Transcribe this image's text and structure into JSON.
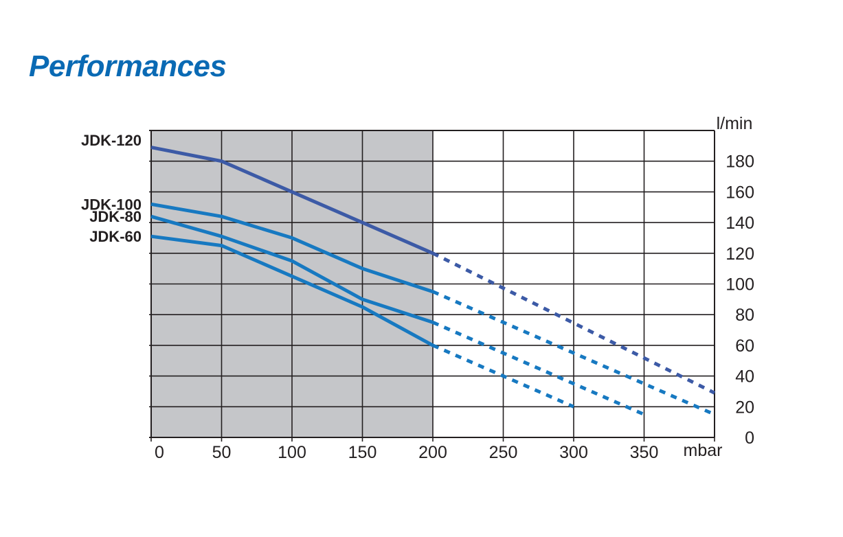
{
  "page": {
    "title": "Performances"
  },
  "colors": {
    "title": "#0a6ab4",
    "shaded_region": "#c5c6c9",
    "grid": "#231f20",
    "series_dark": "#3c5aa6",
    "series_light": "#1779c1"
  },
  "chart_data": {
    "type": "line",
    "title": "",
    "xlabel": "mbar",
    "ylabel": "l/min",
    "xlim": [
      0,
      400
    ],
    "ylim": [
      0,
      200
    ],
    "x_ticks": [
      0,
      50,
      100,
      150,
      200,
      250,
      300,
      350
    ],
    "x_tick_labels": [
      "0",
      "50",
      "100",
      "150",
      "200",
      "250",
      "300",
      "350"
    ],
    "y_ticks": [
      0,
      20,
      40,
      60,
      80,
      100,
      120,
      140,
      160,
      180
    ],
    "y_tick_labels": [
      "0",
      "20",
      "40",
      "60",
      "80",
      "100",
      "120",
      "140",
      "160",
      "180"
    ],
    "y_axis_side": "right",
    "grid": true,
    "shaded_x_range": [
      0,
      200
    ],
    "dashed_beyond_x": 200,
    "series": [
      {
        "name": "JDK-120",
        "color": "#3c5aa6",
        "points": [
          [
            0,
            189
          ],
          [
            50,
            180
          ],
          [
            100,
            160
          ],
          [
            150,
            140
          ],
          [
            200,
            120
          ],
          [
            400,
            29
          ]
        ]
      },
      {
        "name": "JDK-100",
        "color": "#1779c1",
        "points": [
          [
            0,
            152
          ],
          [
            50,
            144
          ],
          [
            100,
            130
          ],
          [
            150,
            110
          ],
          [
            200,
            95
          ],
          [
            400,
            15
          ]
        ]
      },
      {
        "name": "JDK-80",
        "color": "#1779c1",
        "points": [
          [
            0,
            144
          ],
          [
            50,
            131
          ],
          [
            100,
            115
          ],
          [
            150,
            90
          ],
          [
            200,
            75
          ],
          [
            350,
            15
          ]
        ]
      },
      {
        "name": "JDK-60",
        "color": "#1779c1",
        "points": [
          [
            0,
            131
          ],
          [
            50,
            125
          ],
          [
            100,
            105
          ],
          [
            150,
            85
          ],
          [
            200,
            60
          ],
          [
            300,
            20
          ]
        ]
      }
    ]
  }
}
